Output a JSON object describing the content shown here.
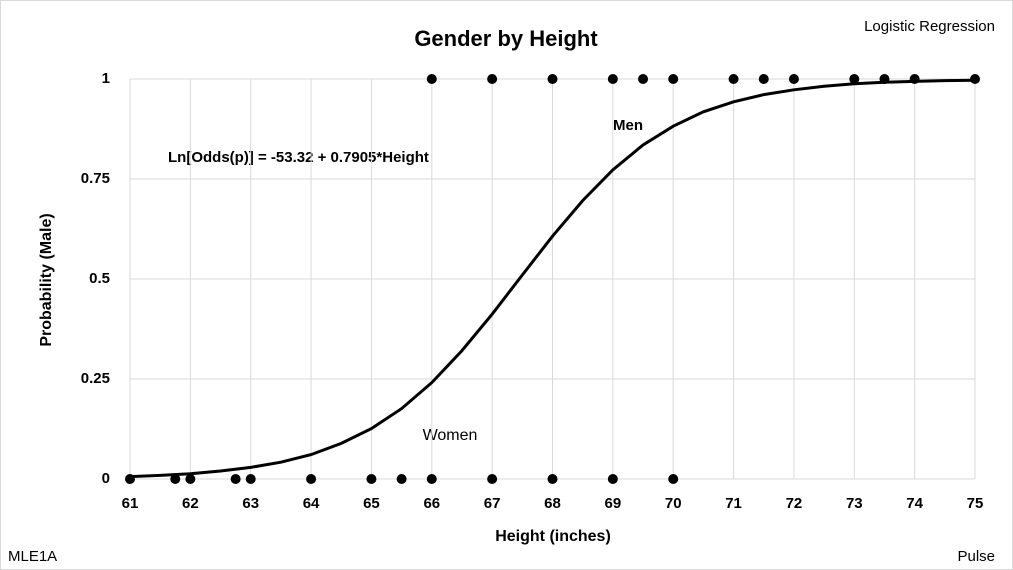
{
  "chart_data": {
    "type": "scatter",
    "title": "Gender by Height",
    "subtitle": "Logistic Regression",
    "footer_left": "MLE1A",
    "footer_right": "Pulse",
    "xlabel": "Height (inches)",
    "ylabel": "Probability (Male)",
    "annotations": [
      "Ln[Odds(p)] = -53.32 + 0.7905*Height",
      "Men",
      "Women"
    ],
    "xlim": [
      61,
      75
    ],
    "xticks": [
      61,
      62,
      63,
      64,
      65,
      66,
      67,
      68,
      69,
      70,
      71,
      72,
      73,
      74,
      75
    ],
    "ylim": [
      0,
      1
    ],
    "yticks": [
      0,
      0.25,
      0.5,
      0.75,
      1
    ],
    "grid": true,
    "series": [
      {
        "mode": "markers",
        "color": "#000000",
        "x": [
          61,
          61.75,
          62,
          62.75,
          63,
          64,
          65,
          65.5,
          66,
          67,
          68,
          69,
          70,
          66,
          67,
          68,
          69,
          69.5,
          70,
          71,
          71.5,
          72,
          73,
          73.5,
          74,
          75
        ],
        "values": [
          0,
          0,
          0,
          0,
          0,
          0,
          0,
          0,
          0,
          0,
          0,
          0,
          0,
          1,
          1,
          1,
          1,
          1,
          1,
          1,
          1,
          1,
          1,
          1,
          1,
          1
        ]
      },
      {
        "mode": "line",
        "color": "#000000",
        "x": [
          61,
          61.5,
          62,
          62.5,
          63,
          63.5,
          64,
          64.5,
          65,
          65.5,
          66,
          66.5,
          67,
          67.5,
          68,
          68.5,
          69,
          69.5,
          70,
          70.5,
          71,
          71.5,
          72,
          72.5,
          73,
          73.5,
          74,
          74.5,
          75
        ],
        "values": [
          0.006,
          0.009,
          0.013,
          0.02,
          0.029,
          0.042,
          0.061,
          0.089,
          0.126,
          0.176,
          0.241,
          0.321,
          0.412,
          0.51,
          0.607,
          0.696,
          0.773,
          0.835,
          0.882,
          0.918,
          0.943,
          0.961,
          0.973,
          0.982,
          0.988,
          0.992,
          0.994,
          0.996,
          0.997
        ]
      }
    ]
  }
}
